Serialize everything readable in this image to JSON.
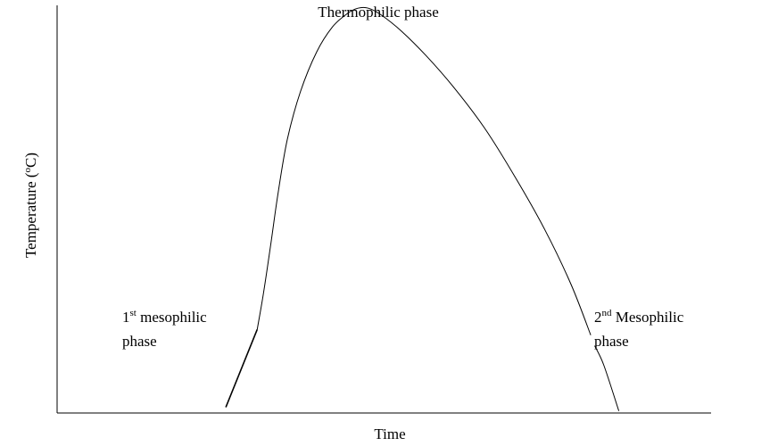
{
  "chart_data": {
    "type": "line",
    "title": "",
    "xlabel": "Time",
    "ylabel": "Temperature (°C)",
    "ylabel_parts": {
      "before": "Temperature (",
      "sup": "o",
      "after": "C)"
    },
    "grid": false,
    "legend": "none",
    "xlim": [
      0,
      100
    ],
    "ylim": [
      0,
      100
    ],
    "phases": [
      {
        "label_lines": [
          {
            "base": "1",
            "sup": "st",
            "rest": " mesophilic"
          },
          {
            "base": "phase",
            "sup": "",
            "rest": ""
          }
        ]
      },
      {
        "label_lines": [
          {
            "base": "Thermophilic phase",
            "sup": "",
            "rest": ""
          }
        ]
      },
      {
        "label_lines": [
          {
            "base": "2",
            "sup": "nd",
            "rest": " Mesophilic"
          },
          {
            "base": "phase",
            "sup": "",
            "rest": ""
          }
        ]
      }
    ],
    "series": [
      {
        "segments": [
          {
            "phase": "1st mesophilic",
            "x": [
              25.8,
              30.6
            ],
            "y": [
              1.4,
              20.5
            ]
          },
          {
            "phase": "Thermophilic",
            "x": [
              30.6,
              31.6,
              32.7,
              33.8,
              35.2,
              37.2,
              39.7,
              42.1,
              44.4,
              46.0,
              47.6,
              49.6,
              52.7,
              56.4,
              60.7,
              65.4,
              70.1,
              74.6,
              78.6,
              81.6
            ],
            "y": [
              20.5,
              29.8,
              41.7,
              54.1,
              67.1,
              78.8,
              88.6,
              94.7,
              98.0,
              99.3,
              99.3,
              97.6,
              93.6,
              87.7,
              79.8,
              69.8,
              57.7,
              44.9,
              31.5,
              19.1
            ]
          },
          {
            "phase": "2nd mesophilic",
            "x": [
              82.2,
              83.6,
              85.9
            ],
            "y": [
              16.5,
              11.7,
              0.5
            ]
          }
        ]
      }
    ],
    "colors": {
      "axis": "#000000",
      "line": "#000000",
      "text": "#000000"
    }
  }
}
